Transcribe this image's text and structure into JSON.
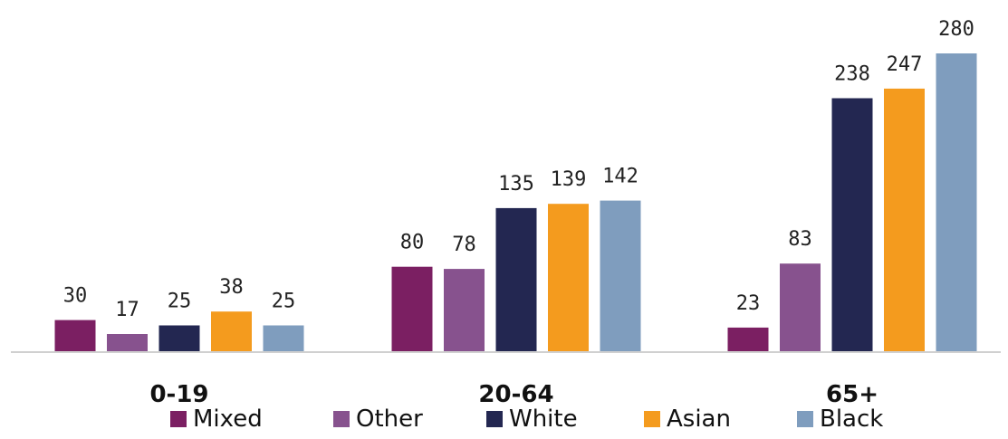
{
  "chart_data": {
    "type": "bar",
    "categories": [
      "0-19",
      "20-64",
      "65+"
    ],
    "series": [
      {
        "name": "Mixed",
        "color": "#7B1F62",
        "values": [
          30,
          80,
          23
        ]
      },
      {
        "name": "Other",
        "color": "#87528E",
        "values": [
          17,
          78,
          83
        ]
      },
      {
        "name": "White",
        "color": "#232751",
        "values": [
          25,
          135,
          238
        ]
      },
      {
        "name": "Asian",
        "color": "#F49B1E",
        "values": [
          38,
          139,
          247
        ]
      },
      {
        "name": "Black",
        "color": "#7F9DBE",
        "values": [
          25,
          142,
          280
        ]
      }
    ],
    "title": "",
    "xlabel": "",
    "ylabel": "",
    "ylim": [
      0,
      280
    ],
    "grid": false,
    "legend_position": "bottom",
    "show_data_labels": true
  }
}
